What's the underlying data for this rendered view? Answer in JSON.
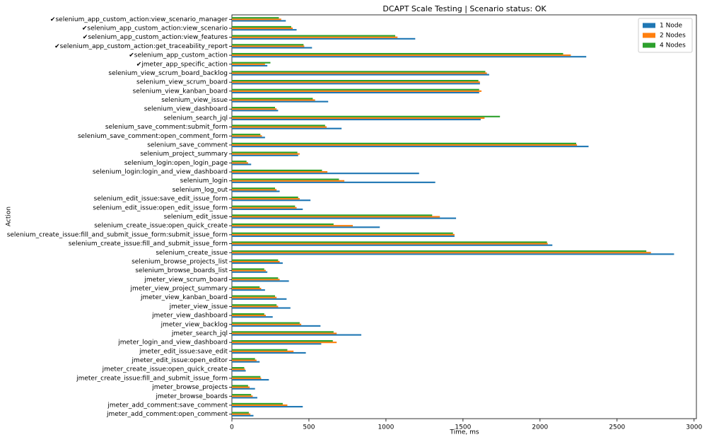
{
  "chart_data": {
    "type": "bar",
    "orientation": "horizontal",
    "title": "DCAPT Scale Testing | Scenario status: OK",
    "x_label": "Time, ms",
    "y_label": "Action",
    "xlim": [
      0,
      3015
    ],
    "xticks": [
      0,
      500,
      1000,
      1500,
      2000,
      2500,
      3000
    ],
    "legend_position": "upper right",
    "categories": [
      "✔selenium_app_custom_action:view_scenario_manager",
      "✔selenium_app_custom_action:view_scenario",
      "✔selenium_app_custom_action:view_features",
      "✔selenium_app_custom_action:get_traceability_report",
      "✔selenium_app_custom_action",
      "✔jmeter_app_specific_action",
      "selenium_view_scrum_board_backlog",
      "selenium_view_scrum_board",
      "selenium_view_kanban_board",
      "selenium_view_issue",
      "selenium_view_dashboard",
      "selenium_search_jql",
      "selenium_save_comment:submit_form",
      "selenium_save_comment:open_comment_form",
      "selenium_save_comment",
      "selenium_project_summary",
      "selenium_login:open_login_page",
      "selenium_login:login_and_view_dashboard",
      "selenium_login",
      "selenium_log_out",
      "selenium_edit_issue:save_edit_issue_form",
      "selenium_edit_issue:open_edit_issue_form",
      "selenium_edit_issue",
      "selenium_create_issue:open_quick_create",
      "selenium_create_issue:fill_and_submit_issue_form:submit_issue_form",
      "selenium_create_issue:fill_and_submit_issue_form",
      "selenium_create_issue",
      "selenium_browse_projects_list",
      "selenium_browse_boards_list",
      "jmeter_view_scrum_board",
      "jmeter_view_project_summary",
      "jmeter_view_kanban_board",
      "jmeter_view_issue",
      "jmeter_view_dashboard",
      "jmeter_view_backlog",
      "jmeter_search_jql",
      "jmeter_login_and_view_dashboard",
      "jmeter_edit_issue:save_edit",
      "jmeter_edit_issue:open_editor",
      "jmeter_create_issue:open_quick_create",
      "jmeter_create_issue:fill_and_submit_issue_form",
      "jmeter_browse_projects",
      "jmeter_browse_boards",
      "jmeter_add_comment:save_comment",
      "jmeter_add_comment:open_comment"
    ],
    "series": [
      {
        "name": "1 Node",
        "color": "#1f77b4",
        "values": [
          350,
          420,
          1190,
          520,
          2300,
          230,
          1670,
          1610,
          1605,
          625,
          300,
          1615,
          712,
          215,
          2315,
          430,
          125,
          1215,
          1320,
          310,
          510,
          460,
          1455,
          960,
          1445,
          2080,
          2870,
          330,
          230,
          370,
          215,
          355,
          380,
          265,
          575,
          840,
          580,
          480,
          180,
          90,
          240,
          150,
          165,
          460,
          140
        ]
      },
      {
        "name": "2 Nodes",
        "color": "#ff7f0e",
        "values": [
          320,
          395,
          1075,
          470,
          2200,
          215,
          1655,
          1610,
          1620,
          540,
          290,
          1640,
          615,
          195,
          2240,
          440,
          105,
          620,
          730,
          290,
          440,
          420,
          1350,
          785,
          1445,
          2050,
          2720,
          310,
          220,
          310,
          190,
          290,
          300,
          220,
          450,
          680,
          680,
          400,
          160,
          85,
          190,
          115,
          135,
          360,
          120
        ]
      },
      {
        "name": "4 Nodes",
        "color": "#2ca02c",
        "values": [
          305,
          385,
          1060,
          465,
          2150,
          250,
          1645,
          1600,
          1605,
          525,
          280,
          1740,
          605,
          185,
          2235,
          425,
          95,
          585,
          695,
          280,
          430,
          410,
          1300,
          660,
          1435,
          2045,
          2690,
          300,
          210,
          300,
          180,
          280,
          290,
          210,
          440,
          660,
          655,
          360,
          150,
          80,
          185,
          105,
          125,
          330,
          110
        ]
      }
    ]
  }
}
